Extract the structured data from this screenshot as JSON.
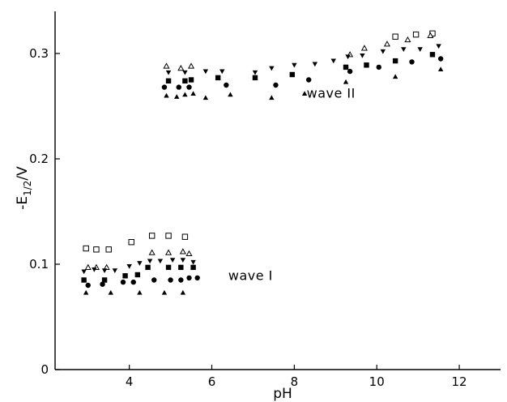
{
  "chart_data": {
    "type": "scatter",
    "title": "",
    "xlabel": "pH",
    "ylabel": "-E1/2/V",
    "ylabel_parts": {
      "prefix": "-E",
      "sub": "1/2",
      "suffix": "/V"
    },
    "xlim": [
      2.2,
      13
    ],
    "ylim": [
      0,
      0.34
    ],
    "xticks": [
      4,
      6,
      8,
      10,
      12
    ],
    "yticks": [
      0,
      0.1,
      0.2,
      0.3
    ],
    "ytick_labels": [
      "0",
      "0.1",
      "0.2",
      "0.3"
    ],
    "grid": false,
    "annotations": [
      {
        "text": "wave I",
        "x": 6.4,
        "y": 0.085
      },
      {
        "text": "wave II",
        "x": 8.3,
        "y": 0.258
      }
    ],
    "series": [
      {
        "marker": "square-open",
        "x": [
          2.95,
          3.2,
          3.5,
          4.05,
          4.55,
          4.95,
          5.35,
          10.45,
          10.95,
          11.35
        ],
        "y": [
          0.115,
          0.114,
          0.114,
          0.121,
          0.127,
          0.127,
          0.126,
          0.316,
          0.318,
          0.319
        ]
      },
      {
        "marker": "triangle-open",
        "x": [
          3.0,
          3.2,
          3.45,
          4.55,
          4.95,
          5.3,
          5.45,
          4.9,
          5.25,
          5.5,
          9.35,
          9.7,
          10.25,
          10.75,
          11.3
        ],
        "y": [
          0.097,
          0.097,
          0.097,
          0.111,
          0.111,
          0.112,
          0.11,
          0.288,
          0.286,
          0.288,
          0.299,
          0.305,
          0.309,
          0.313,
          0.317
        ]
      },
      {
        "marker": "triangle-down-filled",
        "x": [
          2.9,
          3.15,
          3.4,
          3.65,
          4.0,
          4.25,
          4.5,
          4.75,
          5.05,
          5.3,
          5.55,
          4.95,
          5.35,
          5.85,
          6.25,
          7.05,
          7.45,
          8.0,
          8.5,
          8.95,
          9.3,
          9.65,
          10.15,
          10.65,
          11.05,
          11.5
        ],
        "y": [
          0.093,
          0.095,
          0.094,
          0.094,
          0.098,
          0.101,
          0.103,
          0.103,
          0.104,
          0.104,
          0.102,
          0.282,
          0.282,
          0.283,
          0.283,
          0.282,
          0.286,
          0.289,
          0.29,
          0.293,
          0.297,
          0.298,
          0.302,
          0.304,
          0.304,
          0.307
        ]
      },
      {
        "marker": "square-filled",
        "x": [
          2.9,
          3.4,
          3.9,
          4.2,
          4.45,
          4.95,
          5.25,
          5.55,
          4.95,
          5.35,
          5.5,
          6.15,
          7.05,
          7.95,
          9.25,
          9.75,
          10.45,
          11.35
        ],
        "y": [
          0.085,
          0.085,
          0.089,
          0.09,
          0.097,
          0.097,
          0.097,
          0.097,
          0.274,
          0.274,
          0.275,
          0.277,
          0.277,
          0.28,
          0.287,
          0.289,
          0.293,
          0.299
        ]
      },
      {
        "marker": "circle-filled",
        "x": [
          3.0,
          3.35,
          3.85,
          4.1,
          4.6,
          5.0,
          5.25,
          5.45,
          5.65,
          4.85,
          5.2,
          5.45,
          6.35,
          7.55,
          8.35,
          9.35,
          10.05,
          10.85,
          11.55
        ],
        "y": [
          0.08,
          0.081,
          0.083,
          0.083,
          0.085,
          0.085,
          0.085,
          0.087,
          0.087,
          0.268,
          0.268,
          0.268,
          0.27,
          0.27,
          0.275,
          0.283,
          0.287,
          0.292,
          0.295
        ]
      },
      {
        "marker": "triangle-filled",
        "x": [
          2.95,
          3.55,
          4.25,
          4.85,
          5.3,
          4.9,
          5.15,
          5.35,
          5.55,
          5.85,
          6.45,
          7.45,
          8.25,
          9.25,
          10.45,
          11.55
        ],
        "y": [
          0.073,
          0.073,
          0.073,
          0.073,
          0.073,
          0.26,
          0.259,
          0.261,
          0.262,
          0.258,
          0.261,
          0.258,
          0.262,
          0.273,
          0.278,
          0.285
        ]
      }
    ]
  }
}
